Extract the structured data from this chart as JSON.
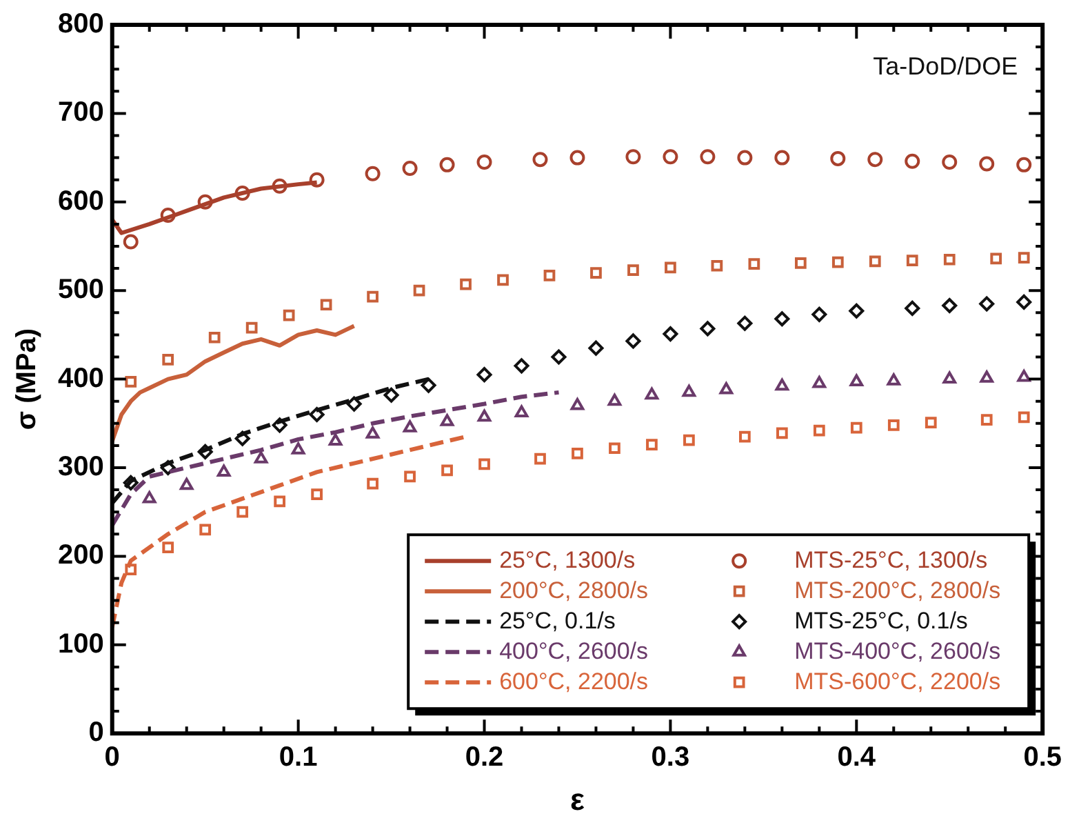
{
  "chart_data": {
    "type": "line",
    "xlabel": "ε",
    "ylabel": "σ (MPa)",
    "xlim": [
      0,
      0.5
    ],
    "xticks": [
      0,
      0.1,
      0.2,
      0.3,
      0.4,
      0.5
    ],
    "ylim": [
      0,
      800
    ],
    "yticks": [
      0,
      100,
      200,
      300,
      400,
      500,
      600,
      700,
      800
    ],
    "grid": false,
    "legend": "bottom right",
    "annotations": [
      "Ta-DoD/DOE"
    ],
    "series": [
      {
        "name": "25°C, 1300/s",
        "line_style": "solid",
        "marker": "none",
        "color": "#a8402c",
        "x": [
          0,
          0.005,
          0.02,
          0.04,
          0.06,
          0.08,
          0.1,
          0.11
        ],
        "values": [
          580,
          565,
          575,
          590,
          605,
          615,
          620,
          622
        ]
      },
      {
        "name": "200°C, 2800/s",
        "line_style": "solid",
        "marker": "none",
        "color": "#c8603a",
        "x": [
          0,
          0.005,
          0.01,
          0.015,
          0.02,
          0.03,
          0.04,
          0.05,
          0.06,
          0.07,
          0.08,
          0.09,
          0.1,
          0.11,
          0.12,
          0.13
        ],
        "values": [
          330,
          360,
          375,
          385,
          390,
          400,
          405,
          420,
          430,
          440,
          445,
          438,
          450,
          455,
          450,
          460
        ]
      },
      {
        "name": "25°C, 0.1/s",
        "line_style": "dashed",
        "marker": "none",
        "color": "#111111",
        "x": [
          0,
          0.01,
          0.03,
          0.05,
          0.07,
          0.09,
          0.11,
          0.13,
          0.15,
          0.17
        ],
        "values": [
          260,
          285,
          305,
          320,
          338,
          352,
          365,
          377,
          390,
          400
        ]
      },
      {
        "name": "400°C, 2600/s",
        "line_style": "dashed",
        "marker": "none",
        "color": "#6a3a6a",
        "x": [
          0,
          0.01,
          0.02,
          0.04,
          0.06,
          0.08,
          0.1,
          0.12,
          0.14,
          0.16,
          0.18,
          0.2,
          0.22,
          0.24
        ],
        "values": [
          235,
          270,
          290,
          300,
          310,
          320,
          332,
          340,
          350,
          358,
          365,
          372,
          380,
          385
        ]
      },
      {
        "name": "600°C, 2200/s",
        "line_style": "dashed",
        "marker": "none",
        "color": "#d8643a",
        "x": [
          0,
          0.005,
          0.01,
          0.03,
          0.05,
          0.07,
          0.09,
          0.11,
          0.13,
          0.15,
          0.17,
          0.19
        ],
        "values": [
          120,
          170,
          195,
          225,
          250,
          265,
          280,
          295,
          305,
          315,
          325,
          335
        ]
      },
      {
        "name": "MTS-25°C, 1300/s",
        "type": "scatter",
        "marker": "circle",
        "color": "#a8402c",
        "x": [
          0.01,
          0.03,
          0.05,
          0.07,
          0.09,
          0.11,
          0.14,
          0.16,
          0.18,
          0.2,
          0.23,
          0.25,
          0.28,
          0.3,
          0.32,
          0.34,
          0.36,
          0.39,
          0.41,
          0.43,
          0.45,
          0.47,
          0.49
        ],
        "values": [
          555,
          585,
          600,
          610,
          618,
          625,
          632,
          638,
          642,
          645,
          648,
          650,
          651,
          651,
          651,
          650,
          650,
          649,
          648,
          646,
          645,
          643,
          642
        ]
      },
      {
        "name": "MTS-200°C, 2800/s",
        "type": "scatter",
        "marker": "square",
        "color": "#c8603a",
        "x": [
          0.01,
          0.03,
          0.055,
          0.075,
          0.095,
          0.115,
          0.14,
          0.165,
          0.19,
          0.21,
          0.235,
          0.26,
          0.28,
          0.3,
          0.325,
          0.345,
          0.37,
          0.39,
          0.41,
          0.43,
          0.45,
          0.475,
          0.49
        ],
        "values": [
          397,
          422,
          447,
          458,
          472,
          484,
          493,
          500,
          507,
          512,
          517,
          520,
          523,
          526,
          528,
          530,
          531,
          532,
          533,
          534,
          535,
          536,
          537
        ]
      },
      {
        "name": "MTS-25°C, 0.1/s",
        "type": "scatter",
        "marker": "diamond",
        "color": "#111111",
        "x": [
          0.01,
          0.03,
          0.05,
          0.07,
          0.09,
          0.11,
          0.13,
          0.15,
          0.17,
          0.2,
          0.22,
          0.24,
          0.26,
          0.28,
          0.3,
          0.32,
          0.34,
          0.36,
          0.38,
          0.4,
          0.43,
          0.45,
          0.47,
          0.49
        ],
        "values": [
          283,
          300,
          318,
          333,
          348,
          360,
          372,
          382,
          393,
          405,
          415,
          425,
          435,
          443,
          451,
          457,
          463,
          468,
          473,
          477,
          480,
          483,
          485,
          487
        ]
      },
      {
        "name": "MTS-400°C, 2600/s",
        "type": "scatter",
        "marker": "triangle",
        "color": "#6a3a6a",
        "x": [
          0.02,
          0.04,
          0.06,
          0.08,
          0.1,
          0.12,
          0.14,
          0.16,
          0.18,
          0.2,
          0.22,
          0.25,
          0.27,
          0.29,
          0.31,
          0.33,
          0.36,
          0.38,
          0.4,
          0.42,
          0.45,
          0.47,
          0.49
        ],
        "values": [
          265,
          280,
          295,
          310,
          320,
          330,
          338,
          345,
          352,
          357,
          362,
          370,
          375,
          382,
          385,
          388,
          392,
          395,
          397,
          398,
          400,
          401,
          402
        ]
      },
      {
        "name": "MTS-600°C, 2200/s",
        "type": "scatter",
        "marker": "square",
        "color": "#d8643a",
        "x": [
          0.01,
          0.03,
          0.05,
          0.07,
          0.09,
          0.11,
          0.14,
          0.16,
          0.18,
          0.2,
          0.23,
          0.25,
          0.27,
          0.29,
          0.31,
          0.34,
          0.36,
          0.38,
          0.4,
          0.42,
          0.44,
          0.47,
          0.49
        ],
        "values": [
          185,
          210,
          230,
          250,
          262,
          270,
          282,
          290,
          297,
          304,
          310,
          316,
          322,
          326,
          331,
          335,
          339,
          342,
          345,
          348,
          351,
          354,
          357
        ]
      }
    ]
  }
}
